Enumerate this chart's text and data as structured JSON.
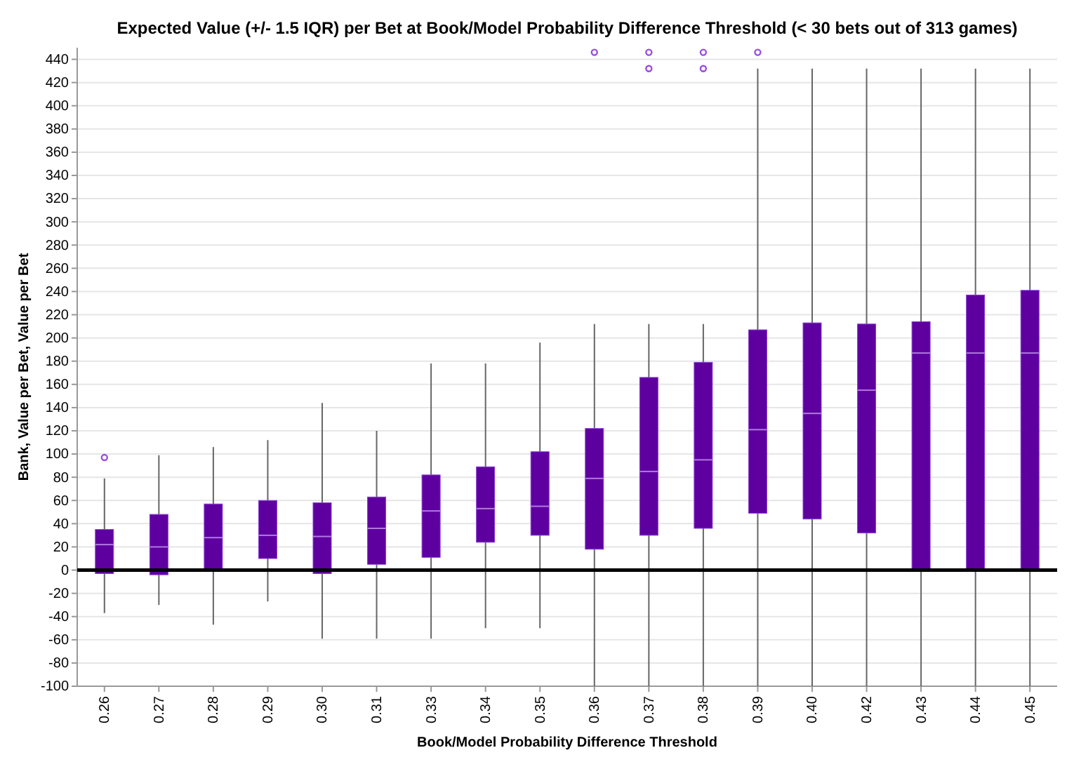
{
  "chart_data": {
    "type": "box",
    "title": "Expected Value (+/- 1.5 IQR) per Bet at Book/Model Probability Difference Threshold (< 30 bets out of 313 games)",
    "xlabel": "Book/Model Probability Difference Threshold",
    "ylabel": "Bank, Value per Bet, Value per Bet",
    "categories": [
      "0.26",
      "0.27",
      "0.28",
      "0.29",
      "0.30",
      "0.31",
      "0.33",
      "0.34",
      "0.35",
      "0.36",
      "0.37",
      "0.38",
      "0.39",
      "0.40",
      "0.42",
      "0.43",
      "0.44",
      "0.45"
    ],
    "color": "#5e00a0",
    "boxes": [
      {
        "low": -37,
        "q1": -3,
        "median": 22,
        "q3": 35,
        "high": 79,
        "outliers": [
          97
        ]
      },
      {
        "low": -30,
        "q1": -4,
        "median": 20,
        "q3": 48,
        "high": 99
      },
      {
        "low": -47,
        "q1": 1,
        "median": 28,
        "q3": 57,
        "high": 106
      },
      {
        "low": -27,
        "q1": 10,
        "median": 30,
        "q3": 60,
        "high": 112
      },
      {
        "low": -59,
        "q1": -3,
        "median": 29,
        "q3": 58,
        "high": 144
      },
      {
        "low": -59,
        "q1": 5,
        "median": 36,
        "q3": 63,
        "high": 120
      },
      {
        "low": -59,
        "q1": 11,
        "median": 51,
        "q3": 82,
        "high": 178
      },
      {
        "low": -50,
        "q1": 24,
        "median": 53,
        "q3": 89,
        "high": 178
      },
      {
        "low": -50,
        "q1": 30,
        "median": 55,
        "q3": 102,
        "high": 196
      },
      {
        "low": -100,
        "q1": 18,
        "median": 79,
        "q3": 122,
        "high": 212,
        "outliers": [
          446
        ]
      },
      {
        "low": -100,
        "q1": 30,
        "median": 85,
        "q3": 166,
        "high": 212,
        "outliers": [
          432,
          446
        ]
      },
      {
        "low": -100,
        "q1": 36,
        "median": 95,
        "q3": 179,
        "high": 212,
        "outliers": [
          432,
          446
        ]
      },
      {
        "low": -100,
        "q1": 49,
        "median": 121,
        "q3": 207,
        "high": 432,
        "outliers": [
          446
        ]
      },
      {
        "low": -100,
        "q1": 44,
        "median": 135,
        "q3": 213,
        "high": 432
      },
      {
        "low": -100,
        "q1": 32,
        "median": 155,
        "q3": 212,
        "high": 432
      },
      {
        "low": -100,
        "q1": 0,
        "median": 187,
        "q3": 214,
        "high": 432
      },
      {
        "low": -100,
        "q1": 0,
        "median": 187,
        "q3": 237,
        "high": 432
      },
      {
        "low": -100,
        "q1": 0,
        "median": 187,
        "q3": 241,
        "high": 432
      }
    ],
    "ylim": [
      -100,
      450
    ],
    "yticks": [
      -100,
      -80,
      -60,
      -40,
      -20,
      0,
      20,
      40,
      60,
      80,
      100,
      120,
      140,
      160,
      180,
      200,
      220,
      240,
      260,
      280,
      300,
      320,
      340,
      360,
      380,
      400,
      420,
      440
    ],
    "grid": "y",
    "ref_lines": [
      {
        "axis": "y",
        "value": 0,
        "color": "#000000"
      }
    ]
  }
}
